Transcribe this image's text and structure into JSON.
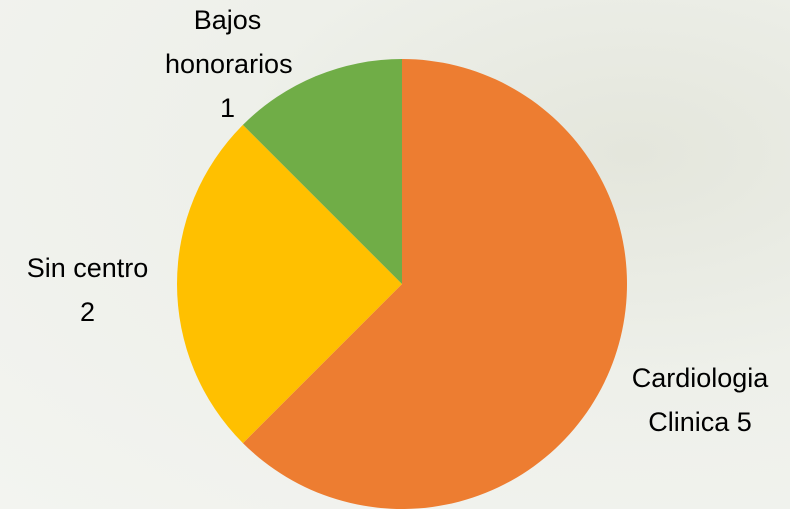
{
  "chart_data": {
    "type": "pie",
    "categories": [
      "Cardiologia Clinica",
      "Sin centro",
      "Bajos honorarios"
    ],
    "values": [
      5,
      2,
      1
    ],
    "colors": [
      "#ed7d31",
      "#ffc000",
      "#70ad47"
    ]
  }
}
